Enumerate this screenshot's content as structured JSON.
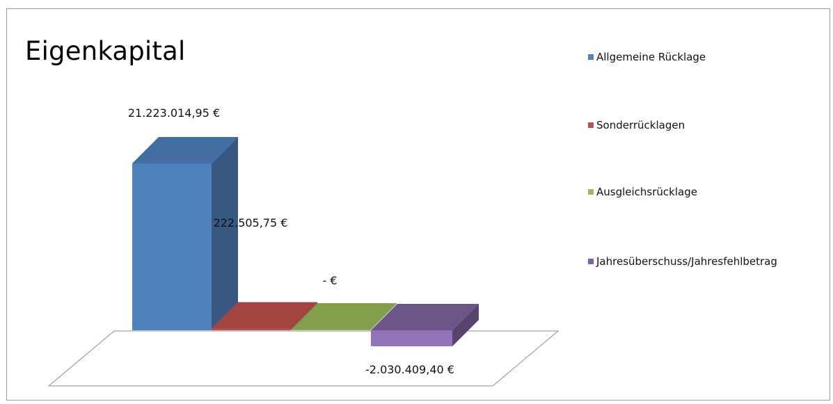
{
  "chart_data": {
    "type": "bar",
    "title": "Eigenkapital",
    "categories": [
      "Allgemeine Rücklage",
      "Sonderrücklagen",
      "Ausgleichsrücklage",
      "Jahresüberschuss/Jahresfehlbetrag"
    ],
    "values": [
      21223014.95,
      222505.75,
      0,
      -2030409.4
    ],
    "data_labels": [
      "21.223.014,95 €",
      "222.505,75 €",
      "-   €",
      "-2.030.409,40 €"
    ],
    "colors": [
      "#4f81bd",
      "#c0504d",
      "#9bbb59",
      "#8064a2"
    ],
    "ylim": [
      -2100000,
      21300000
    ],
    "grid": false,
    "legend_position": "right",
    "style": "3d-column"
  }
}
